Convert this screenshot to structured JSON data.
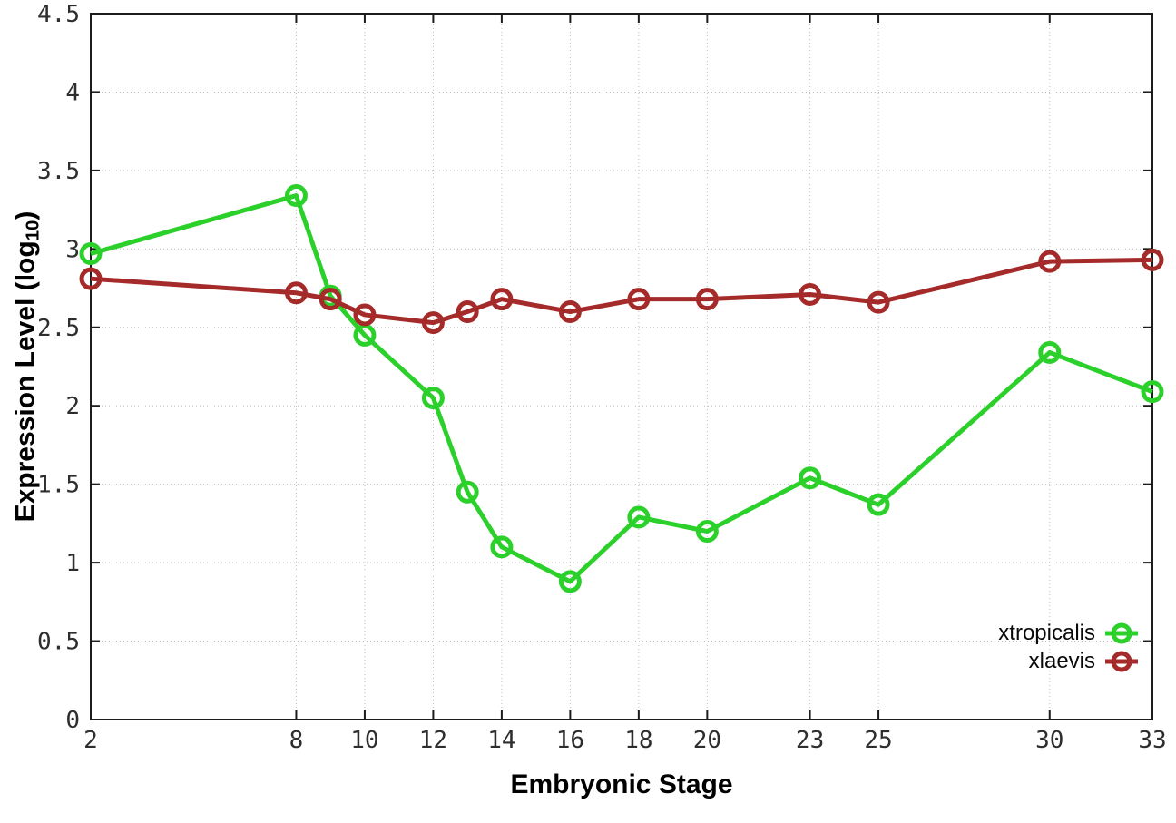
{
  "chart_data": {
    "type": "line",
    "title": "",
    "xlabel": "Embryonic Stage",
    "ylabel": "Expression Level (log10)",
    "ylabel_parts": {
      "main": "Expression Level (log",
      "sub": "10",
      "close": ")"
    },
    "xlim": [
      2,
      33
    ],
    "ylim": [
      0,
      4.5
    ],
    "x_ticks": [
      2,
      8,
      10,
      12,
      14,
      16,
      18,
      20,
      23,
      25,
      30,
      33
    ],
    "y_ticks": [
      0,
      0.5,
      1,
      1.5,
      2,
      2.5,
      3,
      3.5,
      4,
      4.5
    ],
    "grid": true,
    "legend_position": "inside-bottom-right",
    "x": [
      2,
      8,
      9,
      10,
      12,
      13,
      14,
      16,
      18,
      20,
      23,
      25,
      30,
      33
    ],
    "series": [
      {
        "name": "xtropicalis",
        "color": "#2bd02b",
        "marker": "open-circle",
        "values": [
          2.97,
          3.34,
          2.7,
          2.45,
          2.05,
          1.45,
          1.1,
          0.88,
          1.29,
          1.2,
          1.54,
          1.37,
          2.34,
          2.09
        ]
      },
      {
        "name": "xlaevis",
        "color": "#a52a2a",
        "marker": "open-circle",
        "values": [
          2.81,
          2.72,
          2.68,
          2.58,
          2.53,
          2.6,
          2.68,
          2.6,
          2.68,
          2.68,
          2.71,
          2.66,
          2.92,
          2.93
        ]
      }
    ],
    "style_colors": {
      "axis": "#1c1c1c",
      "grid": "#bdbdbd",
      "tick_label": "#2e2e2e"
    }
  }
}
